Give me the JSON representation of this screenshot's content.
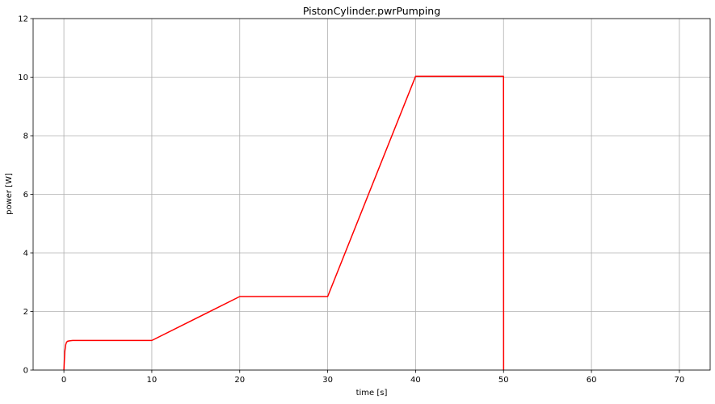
{
  "chart_data": {
    "type": "line",
    "title": "PistonCylinder.pwrPumping",
    "xlabel": "time [s]",
    "ylabel": "power [W]",
    "xlim": [
      -3.5,
      73.5
    ],
    "ylim": [
      0,
      12
    ],
    "xticks": [
      0,
      10,
      20,
      30,
      40,
      50,
      60,
      70
    ],
    "yticks": [
      0,
      2,
      4,
      6,
      8,
      10,
      12
    ],
    "grid": true,
    "colors": {
      "line": "#ff0000",
      "grid": "#b0b0b0",
      "frame": "#000000"
    },
    "series": [
      {
        "x": [
          0,
          0.1,
          0.2,
          0.3,
          0.4,
          0.5,
          0.7,
          1.0,
          10,
          20,
          30,
          40,
          50,
          50.01
        ],
        "y": [
          0,
          0.63,
          0.86,
          0.95,
          0.98,
          0.99,
          1.0,
          1.01,
          1.01,
          2.51,
          2.51,
          10.03,
          10.03,
          0
        ]
      }
    ]
  }
}
